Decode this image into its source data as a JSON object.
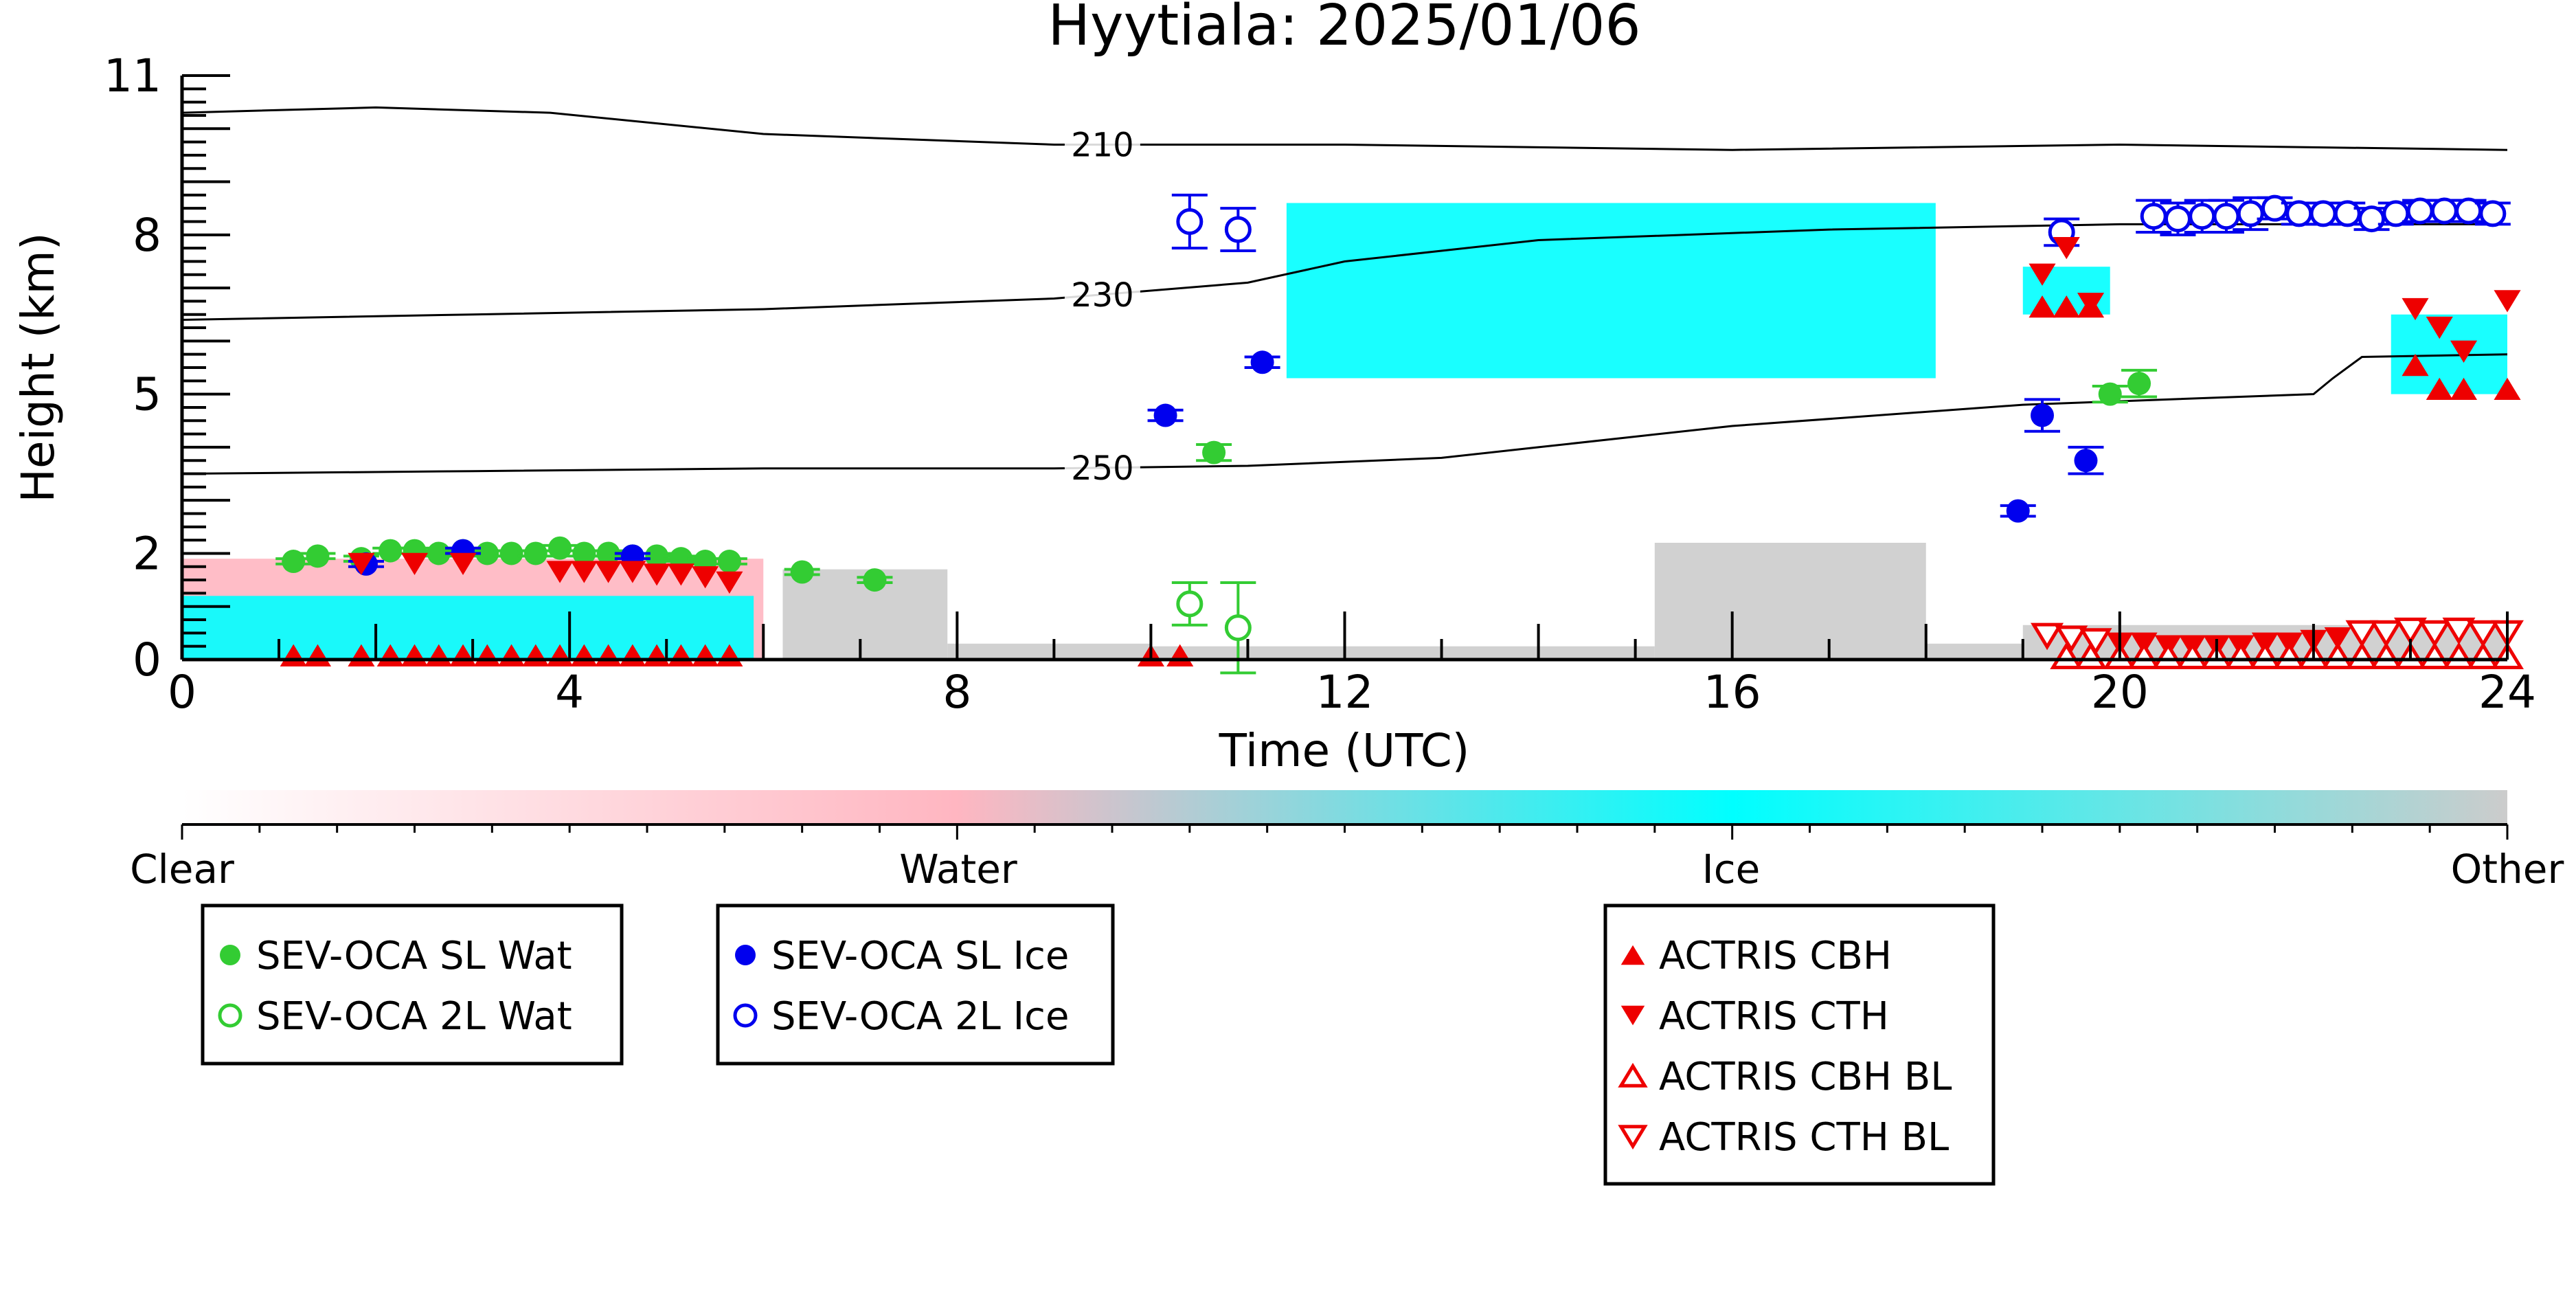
{
  "chart_data": {
    "type": "scatter",
    "title": "Hyytiala: 2025/01/06",
    "xlabel": "Time (UTC)",
    "ylabel": "Height (km)",
    "xlim": [
      0,
      24
    ],
    "ylim": [
      0,
      11
    ],
    "xticks": [
      0,
      4,
      8,
      12,
      16,
      20,
      24
    ],
    "yticks": [
      0,
      2,
      5,
      8,
      11
    ],
    "colors": {
      "clear": "#ffffff",
      "water": "#ffb6c1",
      "ice": "#00ffff",
      "other": "#cccccc",
      "sl_wat": "#33cc33",
      "sl_ice": "#0000ee",
      "actris": "#ee0000"
    },
    "classification": {
      "colorbar_labels": [
        "Clear",
        "Water",
        "Ice",
        "Other"
      ],
      "water_regions": [
        {
          "x": [
            0.0,
            6.0
          ],
          "y": [
            0.0,
            1.9
          ]
        }
      ],
      "ice_regions": [
        {
          "x": [
            0.0,
            5.9
          ],
          "y": [
            0.0,
            1.2
          ]
        },
        {
          "x": [
            11.4,
            18.1
          ],
          "y": [
            5.3,
            8.6
          ]
        },
        {
          "x": [
            19.0,
            19.9
          ],
          "y": [
            6.5,
            7.4
          ]
        },
        {
          "x": [
            22.8,
            24.0
          ],
          "y": [
            5.0,
            6.5
          ]
        }
      ],
      "other_regions": [
        {
          "x": [
            6.2,
            7.9
          ],
          "y": [
            0.0,
            1.7
          ]
        },
        {
          "x": [
            7.9,
            10.0
          ],
          "y": [
            0.0,
            0.3
          ]
        },
        {
          "x": [
            10.0,
            15.2
          ],
          "y": [
            0.0,
            0.25
          ]
        },
        {
          "x": [
            15.2,
            18.0
          ],
          "y": [
            0.0,
            2.2
          ]
        },
        {
          "x": [
            18.0,
            19.0
          ],
          "y": [
            0.0,
            0.3
          ]
        },
        {
          "x": [
            19.0,
            24.0
          ],
          "y": [
            0.0,
            0.65
          ]
        }
      ]
    },
    "contours": [
      {
        "label": "210",
        "label_x": 9.5,
        "x": [
          0,
          2,
          3.8,
          6,
          9,
          12,
          16,
          20,
          24
        ],
        "y": [
          10.3,
          10.4,
          10.3,
          9.9,
          9.7,
          9.7,
          9.6,
          9.7,
          9.6
        ]
      },
      {
        "label": "230",
        "label_x": 9.5,
        "x": [
          0,
          3,
          6,
          9,
          11,
          12,
          14,
          17,
          20,
          24
        ],
        "y": [
          6.4,
          6.5,
          6.6,
          6.8,
          7.1,
          7.5,
          7.9,
          8.1,
          8.2,
          8.2
        ]
      },
      {
        "label": "250",
        "label_x": 9.5,
        "x": [
          0,
          3,
          6,
          9,
          11,
          13,
          14,
          16,
          19,
          22,
          22.2,
          22.5,
          24
        ],
        "y": [
          3.5,
          3.55,
          3.6,
          3.6,
          3.65,
          3.8,
          4.0,
          4.4,
          4.8,
          5.0,
          5.3,
          5.7,
          5.75
        ]
      }
    ],
    "series": [
      {
        "name": "SEV-OCA SL Wat",
        "marker": "filled-circle",
        "x": [
          1.15,
          1.4,
          1.85,
          2.15,
          2.4,
          2.65,
          2.9,
          3.15,
          3.4,
          3.65,
          3.9,
          4.15,
          4.4,
          4.65,
          4.9,
          5.15,
          5.4,
          5.65,
          6.4,
          7.15,
          10.65,
          19.9,
          20.2
        ],
        "y": [
          1.85,
          1.95,
          1.9,
          2.05,
          2.05,
          2.0,
          2.05,
          2.0,
          2.0,
          2.0,
          2.1,
          2.0,
          2.0,
          1.95,
          1.95,
          1.9,
          1.85,
          1.85,
          1.65,
          1.5,
          3.9,
          5.0,
          5.2
        ],
        "yerr": [
          0.05,
          0.05,
          0.05,
          0.05,
          0.05,
          0.05,
          0.05,
          0.05,
          0.05,
          0.05,
          0.05,
          0.05,
          0.05,
          0.05,
          0.05,
          0.05,
          0.05,
          0.05,
          0.05,
          0.05,
          0.15,
          0.15,
          0.25
        ]
      },
      {
        "name": "SEV-OCA 2L Wat",
        "marker": "open-circle",
        "x": [
          10.4,
          10.9
        ],
        "y": [
          1.05,
          0.6
        ],
        "yerr": [
          0.4,
          0.85
        ]
      },
      {
        "name": "SEV-OCA SL Ice",
        "marker": "filled-circle",
        "x": [
          1.9,
          2.9,
          4.65,
          10.15,
          11.15,
          18.95,
          19.2,
          19.65
        ],
        "y": [
          1.8,
          2.05,
          1.95,
          4.6,
          5.6,
          2.8,
          4.6,
          3.75
        ],
        "yerr": [
          0.05,
          0.05,
          0.05,
          0.1,
          0.1,
          0.1,
          0.3,
          0.25
        ]
      },
      {
        "name": "SEV-OCA 2L Ice",
        "marker": "open-circle",
        "x": [
          10.4,
          10.9,
          19.4,
          20.35,
          20.6,
          20.85,
          21.1,
          21.35,
          21.6,
          21.85,
          22.1,
          22.35,
          22.6,
          22.85,
          23.1,
          23.35,
          23.6,
          23.85
        ],
        "y": [
          8.25,
          8.1,
          8.05,
          8.35,
          8.3,
          8.35,
          8.35,
          8.4,
          8.5,
          8.4,
          8.4,
          8.4,
          8.3,
          8.4,
          8.45,
          8.45,
          8.45,
          8.4
        ],
        "yerr": [
          0.5,
          0.4,
          0.25,
          0.3,
          0.3,
          0.3,
          0.3,
          0.3,
          0.2,
          0.2,
          0.2,
          0.2,
          0.2,
          0.2,
          0.2,
          0.2,
          0.2,
          0.2
        ]
      },
      {
        "name": "ACTRIS CBH",
        "marker": "triangle-up-filled",
        "x": [
          1.15,
          1.4,
          1.85,
          2.15,
          2.4,
          2.65,
          2.9,
          3.15,
          3.4,
          3.65,
          3.9,
          4.15,
          4.4,
          4.65,
          4.9,
          5.15,
          5.4,
          5.65,
          10.0,
          10.3,
          19.2,
          19.45,
          19.7,
          23.05,
          23.3,
          23.55,
          24.0
        ],
        "y": [
          0.08,
          0.08,
          0.08,
          0.08,
          0.08,
          0.08,
          0.08,
          0.08,
          0.08,
          0.08,
          0.08,
          0.08,
          0.08,
          0.08,
          0.08,
          0.08,
          0.08,
          0.08,
          0.08,
          0.08,
          6.65,
          6.65,
          6.65,
          5.55,
          5.1,
          5.1,
          5.1
        ]
      },
      {
        "name": "ACTRIS CTH",
        "marker": "triangle-down-filled",
        "x": [
          1.85,
          2.4,
          2.9,
          3.9,
          4.15,
          4.4,
          4.65,
          4.9,
          5.15,
          5.4,
          5.65,
          19.2,
          19.45,
          19.7,
          20.0,
          20.25,
          20.5,
          20.75,
          21.0,
          21.25,
          21.5,
          21.75,
          22.0,
          22.25,
          22.5,
          23.05,
          23.3,
          23.55,
          24.0
        ],
        "y": [
          1.8,
          1.8,
          1.8,
          1.65,
          1.65,
          1.65,
          1.65,
          1.6,
          1.6,
          1.55,
          1.45,
          7.25,
          7.75,
          6.7,
          0.3,
          0.3,
          0.25,
          0.25,
          0.25,
          0.25,
          0.3,
          0.3,
          0.35,
          0.4,
          0.45,
          6.6,
          6.25,
          5.8,
          6.75
        ]
      },
      {
        "name": "ACTRIS CBH BL",
        "marker": "triangle-up-open",
        "x": [
          19.45,
          19.7,
          20.0,
          20.25,
          20.5,
          20.75,
          21.0,
          21.25,
          21.5,
          21.75,
          22.0,
          22.25,
          22.5,
          22.75,
          23.0,
          23.25,
          23.5,
          23.75,
          24.0
        ],
        "y": [
          0.06,
          0.06,
          0.06,
          0.06,
          0.06,
          0.06,
          0.06,
          0.06,
          0.06,
          0.06,
          0.06,
          0.06,
          0.06,
          0.06,
          0.06,
          0.06,
          0.06,
          0.06,
          0.06
        ]
      },
      {
        "name": "ACTRIS CTH BL",
        "marker": "triangle-down-open",
        "x": [
          19.25,
          19.5,
          19.75,
          22.5,
          22.75,
          23.0,
          23.25,
          23.5,
          23.75,
          24.0
        ],
        "y": [
          0.45,
          0.4,
          0.35,
          0.5,
          0.5,
          0.55,
          0.5,
          0.55,
          0.5,
          0.5
        ]
      }
    ],
    "legends": [
      {
        "entries": [
          "SEV-OCA SL Wat",
          "SEV-OCA 2L Wat"
        ]
      },
      {
        "entries": [
          "SEV-OCA SL Ice",
          "SEV-OCA 2L Ice"
        ]
      },
      {
        "entries": [
          "ACTRIS CBH",
          "ACTRIS CTH",
          "ACTRIS CBH BL",
          "ACTRIS CTH BL"
        ]
      }
    ]
  }
}
